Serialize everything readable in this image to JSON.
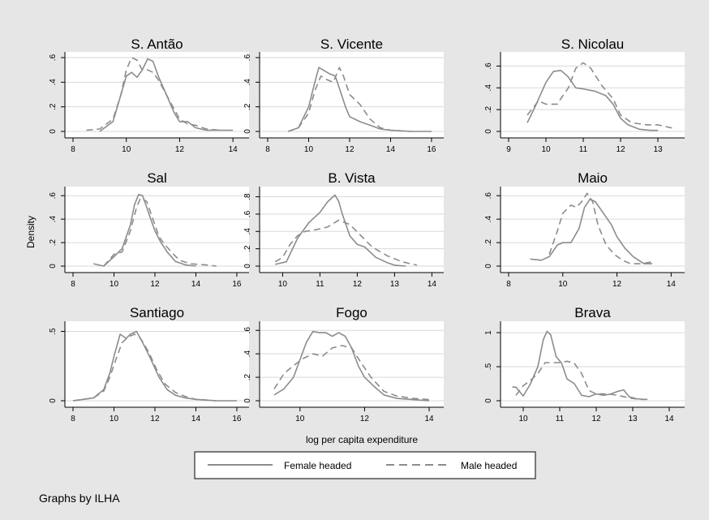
{
  "figure": {
    "ylabel": "Density",
    "xlabel": "log per capita expenditure",
    "note": "Graphs by ILHA",
    "legend": [
      "Female headed",
      "Male headed"
    ]
  },
  "colors": {
    "background": "#e6e6e6",
    "panel": "#ffffff",
    "grid": "#d9d9d9",
    "line": "#8c8c8c",
    "axis": "#000000"
  },
  "chart_data": [
    {
      "type": "line",
      "title": "S. Antão",
      "xlim": [
        8,
        14.3
      ],
      "ylim": [
        0,
        0.62
      ],
      "xticks": [
        8,
        10,
        12,
        14
      ],
      "xtick_labels": [
        "8",
        "10",
        "12",
        "14"
      ],
      "yticks": [
        0,
        0.2,
        0.4,
        0.6
      ],
      "ytick_labels": [
        "0",
        ".2",
        ".4",
        ".6"
      ],
      "series": [
        {
          "name": "Female headed",
          "dash": "solid",
          "x": [
            9.0,
            9.5,
            9.8,
            10.0,
            10.2,
            10.4,
            10.6,
            10.8,
            11.0,
            11.2,
            11.5,
            11.8,
            12.0,
            12.3,
            12.6,
            13.0,
            13.5,
            14.0
          ],
          "y": [
            0.0,
            0.08,
            0.3,
            0.45,
            0.48,
            0.44,
            0.5,
            0.59,
            0.57,
            0.45,
            0.3,
            0.15,
            0.08,
            0.08,
            0.03,
            0.01,
            0.01,
            0.01
          ]
        },
        {
          "name": "Male headed",
          "dash": "dash",
          "x": [
            8.5,
            9.0,
            9.5,
            9.8,
            10.0,
            10.2,
            10.4,
            10.6,
            10.8,
            11.0,
            11.2,
            11.5,
            12.0,
            12.3,
            12.6,
            13.0,
            13.5
          ],
          "y": [
            0.01,
            0.02,
            0.1,
            0.3,
            0.5,
            0.6,
            0.58,
            0.5,
            0.5,
            0.48,
            0.42,
            0.3,
            0.1,
            0.06,
            0.05,
            0.02,
            0.01
          ]
        }
      ]
    },
    {
      "type": "line",
      "title": "S. Vicente",
      "xlim": [
        8,
        16.2
      ],
      "ylim": [
        0,
        0.62
      ],
      "xticks": [
        8,
        10,
        12,
        14,
        16
      ],
      "xtick_labels": [
        "8",
        "10",
        "12",
        "14",
        "16"
      ],
      "yticks": [
        0,
        0.2,
        0.4,
        0.6
      ],
      "ytick_labels": [
        "0",
        ".2",
        ".4",
        ".6"
      ],
      "series": [
        {
          "name": "Female headed",
          "dash": "solid",
          "x": [
            9.0,
            9.5,
            10.0,
            10.3,
            10.5,
            10.8,
            11.0,
            11.3,
            11.5,
            11.8,
            12.0,
            12.5,
            13.0,
            13.5,
            14.0,
            15.0,
            16.0
          ],
          "y": [
            0.0,
            0.03,
            0.2,
            0.4,
            0.52,
            0.49,
            0.47,
            0.45,
            0.35,
            0.2,
            0.12,
            0.08,
            0.05,
            0.02,
            0.01,
            0.0,
            0.0
          ]
        },
        {
          "name": "Male headed",
          "dash": "dash",
          "x": [
            9.0,
            9.5,
            10.0,
            10.3,
            10.6,
            10.9,
            11.2,
            11.5,
            11.7,
            12.0,
            12.5,
            13.0,
            13.5,
            14.0,
            15.0
          ],
          "y": [
            0.0,
            0.03,
            0.15,
            0.33,
            0.45,
            0.42,
            0.4,
            0.52,
            0.45,
            0.3,
            0.22,
            0.1,
            0.03,
            0.01,
            0.0
          ]
        }
      ]
    },
    {
      "type": "line",
      "title": "S. Nicolau",
      "xlim": [
        9,
        13.5
      ],
      "ylim": [
        0,
        0.7
      ],
      "xticks": [
        9,
        10,
        11,
        12,
        13
      ],
      "xtick_labels": [
        "9",
        "10",
        "11",
        "12",
        "13"
      ],
      "yticks": [
        0,
        0.2,
        0.4,
        0.6
      ],
      "ytick_labels": [
        "0",
        ".2",
        ".4",
        ".6"
      ],
      "series": [
        {
          "name": "Female headed",
          "dash": "solid",
          "x": [
            9.5,
            9.7,
            10.0,
            10.2,
            10.4,
            10.6,
            10.8,
            11.0,
            11.3,
            11.6,
            11.8,
            12.0,
            12.2,
            12.5,
            12.8,
            13.0
          ],
          "y": [
            0.08,
            0.22,
            0.45,
            0.55,
            0.56,
            0.5,
            0.4,
            0.39,
            0.37,
            0.33,
            0.25,
            0.12,
            0.06,
            0.02,
            0.01,
            0.01
          ]
        },
        {
          "name": "Male headed",
          "dash": "dash",
          "x": [
            9.5,
            9.8,
            10.0,
            10.3,
            10.6,
            10.8,
            11.0,
            11.2,
            11.5,
            11.8,
            12.0,
            12.3,
            12.7,
            13.0,
            13.4
          ],
          "y": [
            0.15,
            0.28,
            0.25,
            0.25,
            0.4,
            0.58,
            0.63,
            0.58,
            0.42,
            0.3,
            0.15,
            0.08,
            0.06,
            0.06,
            0.03
          ]
        }
      ]
    },
    {
      "type": "line",
      "title": "Sal",
      "xlim": [
        8,
        16.2
      ],
      "ylim": [
        0,
        0.65
      ],
      "xticks": [
        8,
        10,
        12,
        14,
        16
      ],
      "xtick_labels": [
        "8",
        "10",
        "12",
        "14",
        "16"
      ],
      "yticks": [
        0,
        0.2,
        0.4,
        0.6
      ],
      "ytick_labels": [
        "0",
        ".2",
        ".4",
        ".6"
      ],
      "series": [
        {
          "name": "Female headed",
          "dash": "solid",
          "x": [
            9.0,
            9.5,
            10.0,
            10.4,
            10.8,
            11.0,
            11.2,
            11.4,
            11.6,
            11.8,
            12.0,
            12.3,
            12.6,
            13.0,
            13.5,
            14.0
          ],
          "y": [
            0.02,
            0.0,
            0.08,
            0.15,
            0.35,
            0.52,
            0.61,
            0.6,
            0.5,
            0.4,
            0.3,
            0.2,
            0.12,
            0.04,
            0.01,
            0.0
          ]
        },
        {
          "name": "Male headed",
          "dash": "dash",
          "x": [
            9.5,
            10.0,
            10.4,
            10.8,
            11.1,
            11.3,
            11.6,
            11.9,
            12.2,
            12.5,
            12.8,
            13.2,
            13.7,
            14.5,
            15.0
          ],
          "y": [
            0.0,
            0.1,
            0.12,
            0.3,
            0.5,
            0.58,
            0.55,
            0.4,
            0.25,
            0.18,
            0.12,
            0.05,
            0.02,
            0.01,
            0.0
          ]
        }
      ]
    },
    {
      "type": "line",
      "title": "B. Vista",
      "xlim": [
        9.6,
        14.1
      ],
      "ylim": [
        0,
        0.88
      ],
      "xticks": [
        10,
        11,
        12,
        13,
        14
      ],
      "xtick_labels": [
        "10",
        "11",
        "12",
        "13",
        "14"
      ],
      "yticks": [
        0,
        0.2,
        0.4,
        0.6,
        0.8
      ],
      "ytick_labels": [
        "0",
        ".2",
        ".4",
        ".6",
        ".8"
      ],
      "series": [
        {
          "name": "Female headed",
          "dash": "solid",
          "x": [
            9.8,
            10.1,
            10.4,
            10.7,
            11.0,
            11.2,
            11.4,
            11.5,
            11.6,
            11.8,
            12.0,
            12.2,
            12.5,
            12.8,
            13.0,
            13.3
          ],
          "y": [
            0.02,
            0.05,
            0.32,
            0.5,
            0.62,
            0.74,
            0.82,
            0.75,
            0.6,
            0.35,
            0.25,
            0.22,
            0.1,
            0.04,
            0.01,
            0.0
          ]
        },
        {
          "name": "Male headed",
          "dash": "dash",
          "x": [
            9.8,
            10.0,
            10.2,
            10.4,
            10.6,
            10.9,
            11.2,
            11.5,
            11.8,
            12.1,
            12.4,
            12.8,
            13.2,
            13.6
          ],
          "y": [
            0.05,
            0.1,
            0.25,
            0.35,
            0.4,
            0.42,
            0.45,
            0.53,
            0.48,
            0.35,
            0.22,
            0.12,
            0.05,
            0.01
          ]
        }
      ]
    },
    {
      "type": "line",
      "title": "Maio",
      "xlim": [
        8,
        14.2
      ],
      "ylim": [
        0,
        0.65
      ],
      "xticks": [
        8,
        10,
        12,
        14
      ],
      "xtick_labels": [
        "8",
        "10",
        "12",
        "14"
      ],
      "yticks": [
        0,
        0.2,
        0.4,
        0.6
      ],
      "ytick_labels": [
        "0",
        ".2",
        ".4",
        ".6"
      ],
      "series": [
        {
          "name": "Female headed",
          "dash": "solid",
          "x": [
            8.8,
            9.2,
            9.5,
            9.8,
            10.0,
            10.3,
            10.6,
            10.8,
            11.0,
            11.2,
            11.5,
            11.8,
            12.0,
            12.3,
            12.6,
            13.0,
            13.3
          ],
          "y": [
            0.06,
            0.05,
            0.08,
            0.18,
            0.2,
            0.2,
            0.32,
            0.5,
            0.57,
            0.55,
            0.45,
            0.35,
            0.25,
            0.15,
            0.08,
            0.02,
            0.02
          ]
        },
        {
          "name": "Male headed",
          "dash": "dash",
          "x": [
            9.5,
            9.8,
            10.0,
            10.3,
            10.5,
            10.7,
            10.9,
            11.1,
            11.3,
            11.6,
            11.9,
            12.2,
            12.5,
            12.9,
            13.4
          ],
          "y": [
            0.1,
            0.3,
            0.45,
            0.52,
            0.5,
            0.55,
            0.62,
            0.55,
            0.35,
            0.18,
            0.1,
            0.05,
            0.02,
            0.02,
            0.04
          ]
        }
      ]
    },
    {
      "type": "line",
      "title": "Santiago",
      "xlim": [
        8,
        16.2
      ],
      "ylim": [
        0,
        0.55
      ],
      "xticks": [
        8,
        10,
        12,
        14,
        16
      ],
      "xtick_labels": [
        "8",
        "10",
        "12",
        "14",
        "16"
      ],
      "yticks": [
        0,
        0.5
      ],
      "ytick_labels": [
        "0",
        ".5"
      ],
      "series": [
        {
          "name": "Female headed",
          "dash": "solid",
          "x": [
            8.0,
            8.5,
            9.0,
            9.5,
            9.8,
            10.0,
            10.3,
            10.6,
            10.8,
            11.1,
            11.4,
            11.8,
            12.2,
            12.6,
            13.0,
            13.5,
            14.0,
            15.0,
            16.0
          ],
          "y": [
            0.0,
            0.01,
            0.02,
            0.08,
            0.2,
            0.32,
            0.48,
            0.45,
            0.48,
            0.5,
            0.42,
            0.3,
            0.17,
            0.08,
            0.04,
            0.02,
            0.01,
            0.0,
            0.0
          ]
        },
        {
          "name": "Male headed",
          "dash": "dash",
          "x": [
            8.0,
            8.5,
            9.0,
            9.5,
            9.8,
            10.1,
            10.4,
            10.7,
            11.0,
            11.3,
            11.7,
            12.1,
            12.5,
            13.0,
            13.5,
            14.0,
            15.0
          ],
          "y": [
            0.0,
            0.01,
            0.02,
            0.07,
            0.17,
            0.3,
            0.42,
            0.46,
            0.48,
            0.45,
            0.35,
            0.22,
            0.12,
            0.06,
            0.03,
            0.01,
            0.0
          ]
        }
      ]
    },
    {
      "type": "line",
      "title": "Fogo",
      "xlim": [
        9,
        14.2
      ],
      "ylim": [
        0,
        0.65
      ],
      "xticks": [
        10,
        12,
        14
      ],
      "xtick_labels": [
        "10",
        "12",
        "14"
      ],
      "yticks": [
        0,
        0.2,
        0.4,
        0.6
      ],
      "ytick_labels": [
        "0",
        ".2",
        ".4",
        ".6"
      ],
      "series": [
        {
          "name": "Female headed",
          "dash": "solid",
          "x": [
            9.2,
            9.5,
            9.8,
            10.0,
            10.2,
            10.4,
            10.6,
            10.8,
            11.0,
            11.2,
            11.4,
            11.6,
            11.8,
            12.0,
            12.3,
            12.6,
            13.0,
            13.5,
            14.0
          ],
          "y": [
            0.05,
            0.1,
            0.2,
            0.35,
            0.5,
            0.59,
            0.58,
            0.58,
            0.55,
            0.58,
            0.55,
            0.45,
            0.3,
            0.2,
            0.12,
            0.05,
            0.02,
            0.01,
            0.0
          ]
        },
        {
          "name": "Male headed",
          "dash": "dash",
          "x": [
            9.2,
            9.5,
            9.8,
            10.1,
            10.4,
            10.7,
            11.0,
            11.3,
            11.6,
            11.9,
            12.2,
            12.6,
            13.0,
            13.5,
            14.0
          ],
          "y": [
            0.1,
            0.23,
            0.3,
            0.36,
            0.4,
            0.38,
            0.45,
            0.47,
            0.45,
            0.32,
            0.2,
            0.08,
            0.04,
            0.02,
            0.01
          ]
        }
      ]
    },
    {
      "type": "line",
      "title": "Brava",
      "xlim": [
        9.6,
        14.2
      ],
      "ylim": [
        0,
        1.12
      ],
      "xticks": [
        10,
        11,
        12,
        13,
        14
      ],
      "xtick_labels": [
        "10",
        "11",
        "12",
        "13",
        "14"
      ],
      "yticks": [
        0,
        0.5,
        1
      ],
      "ytick_labels": [
        "0",
        ".5",
        "1"
      ],
      "series": [
        {
          "name": "Female headed",
          "dash": "solid",
          "x": [
            9.7,
            9.8,
            10.0,
            10.2,
            10.4,
            10.55,
            10.65,
            10.75,
            10.9,
            11.05,
            11.2,
            11.4,
            11.6,
            11.8,
            12.0,
            12.2,
            12.4,
            12.6,
            12.75,
            12.9,
            13.1,
            13.3
          ],
          "y": [
            0.2,
            0.2,
            0.07,
            0.25,
            0.5,
            0.9,
            1.02,
            0.97,
            0.65,
            0.55,
            0.32,
            0.25,
            0.08,
            0.06,
            0.1,
            0.08,
            0.1,
            0.14,
            0.16,
            0.06,
            0.03,
            0.02
          ]
        },
        {
          "name": "Male headed",
          "dash": "dash",
          "x": [
            9.8,
            10.0,
            10.2,
            10.4,
            10.6,
            10.8,
            11.0,
            11.2,
            11.4,
            11.6,
            11.8,
            12.0,
            12.3,
            12.6,
            12.9,
            13.2,
            13.5
          ],
          "y": [
            0.08,
            0.22,
            0.3,
            0.4,
            0.56,
            0.56,
            0.56,
            0.58,
            0.55,
            0.4,
            0.15,
            0.1,
            0.1,
            0.08,
            0.04,
            0.02,
            0.02
          ]
        }
      ]
    }
  ]
}
